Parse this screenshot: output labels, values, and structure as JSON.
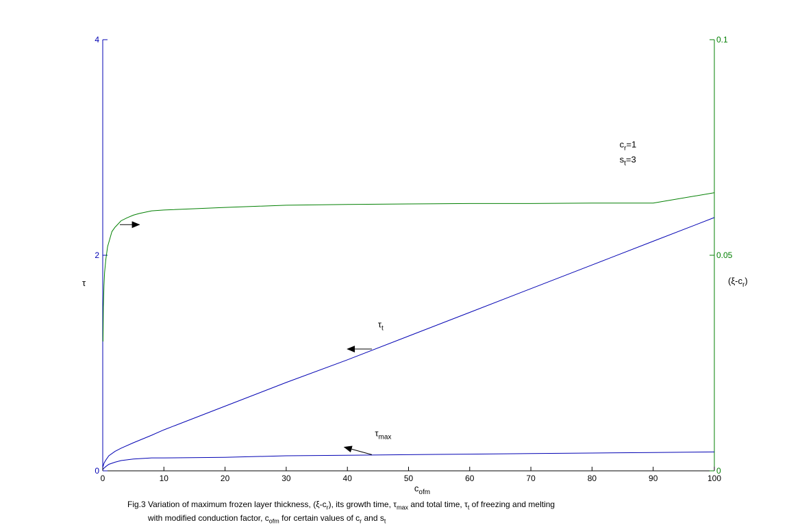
{
  "chart_data": {
    "type": "line",
    "xlabel": {
      "base": "c",
      "sub": "ofm"
    },
    "ylabel_left": "τ",
    "ylabel_right": {
      "base": "(ξ-c",
      "sub": "r",
      "tail": ")"
    },
    "xlim": [
      0,
      100
    ],
    "ylim_left": [
      0,
      4
    ],
    "ylim_right": [
      0,
      0.1
    ],
    "xticks": [
      "0",
      "10",
      "20",
      "30",
      "40",
      "50",
      "60",
      "70",
      "80",
      "90",
      "100"
    ],
    "yticks_left": [
      "0",
      "2",
      "4"
    ],
    "yticks_right": [
      "0",
      "0.05",
      "0.1"
    ],
    "grid": false,
    "axis_colors": {
      "left": "#0000b3",
      "right": "#007f00",
      "bottom": "#000000"
    },
    "series": [
      {
        "axis": "right",
        "color": "#007f00",
        "x": [
          0.05,
          0.1,
          0.2,
          0.3,
          0.5,
          0.8,
          1,
          1.5,
          2,
          3,
          4,
          5,
          6,
          8,
          10,
          15,
          20,
          30,
          40,
          50,
          60,
          70,
          80,
          90,
          100
        ],
        "y": [
          0.03,
          0.038,
          0.043,
          0.046,
          0.049,
          0.052,
          0.053,
          0.0555,
          0.0565,
          0.058,
          0.0587,
          0.0593,
          0.0597,
          0.0603,
          0.0605,
          0.0608,
          0.0611,
          0.0616,
          0.0618,
          0.0619,
          0.062,
          0.062,
          0.0621,
          0.0621,
          0.0645
        ]
      },
      {
        "axis": "left",
        "color": "#0000b3",
        "x": [
          0,
          0.2,
          0.5,
          1,
          2,
          3,
          5,
          8,
          10,
          20,
          30,
          40,
          50,
          60,
          70,
          80,
          90,
          100
        ],
        "y": [
          0.03,
          0.07,
          0.1,
          0.14,
          0.18,
          0.21,
          0.26,
          0.33,
          0.38,
          0.6,
          0.82,
          1.03,
          1.25,
          1.47,
          1.69,
          1.91,
          2.13,
          2.35
        ]
      },
      {
        "axis": "left",
        "color": "#0000b3",
        "x": [
          0,
          0.2,
          0.5,
          1,
          2,
          3,
          5,
          8,
          10,
          20,
          30,
          40,
          50,
          60,
          70,
          80,
          90,
          100
        ],
        "y": [
          0.01,
          0.025,
          0.04,
          0.06,
          0.08,
          0.095,
          0.11,
          0.12,
          0.12,
          0.125,
          0.14,
          0.145,
          0.15,
          0.155,
          0.16,
          0.165,
          0.17,
          0.175
        ]
      }
    ],
    "annotations": [
      {
        "kind": "arrow",
        "axis": "right",
        "x1": 2.8,
        "y1": 0.0571,
        "x2": 6,
        "y2": 0.0571
      },
      {
        "kind": "arrow",
        "axis": "left",
        "x1": 44,
        "y1": 1.13,
        "x2": 40,
        "y2": 1.13
      },
      {
        "kind": "arrow",
        "axis": "left",
        "x1": 44,
        "y1": 0.15,
        "x2": 39.5,
        "y2": 0.22
      },
      {
        "kind": "label",
        "axis": "left",
        "x": 45,
        "y": 1.33,
        "base": "τ",
        "sub": "t"
      },
      {
        "kind": "label",
        "axis": "left",
        "x": 44.5,
        "y": 0.32,
        "base": "τ",
        "sub": "max"
      },
      {
        "kind": "label",
        "axis": "left",
        "x": 84.5,
        "y": 3.0,
        "base": "c",
        "sub": "r",
        "tail": "=1"
      },
      {
        "kind": "label",
        "axis": "left",
        "x": 84.5,
        "y": 2.86,
        "base": "s",
        "sub": "t",
        "tail": "=3"
      }
    ]
  },
  "caption": {
    "line1_a": "Fig.3 Variation of maximum frozen layer thickness, (ξ-c",
    "line1_a_sub": "r",
    "line1_b": "), its growth time, τ",
    "line1_b_sub": "max",
    "line1_c": " and total time, τ",
    "line1_c_sub": "t",
    "line1_d": " of freezing and melting",
    "line2_a": "with modified conduction factor, c",
    "line2_a_sub": "ofm",
    "line2_b": " for certain values of c",
    "line2_b_sub": "r",
    "line2_c": " and s",
    "line2_c_sub": "t"
  }
}
